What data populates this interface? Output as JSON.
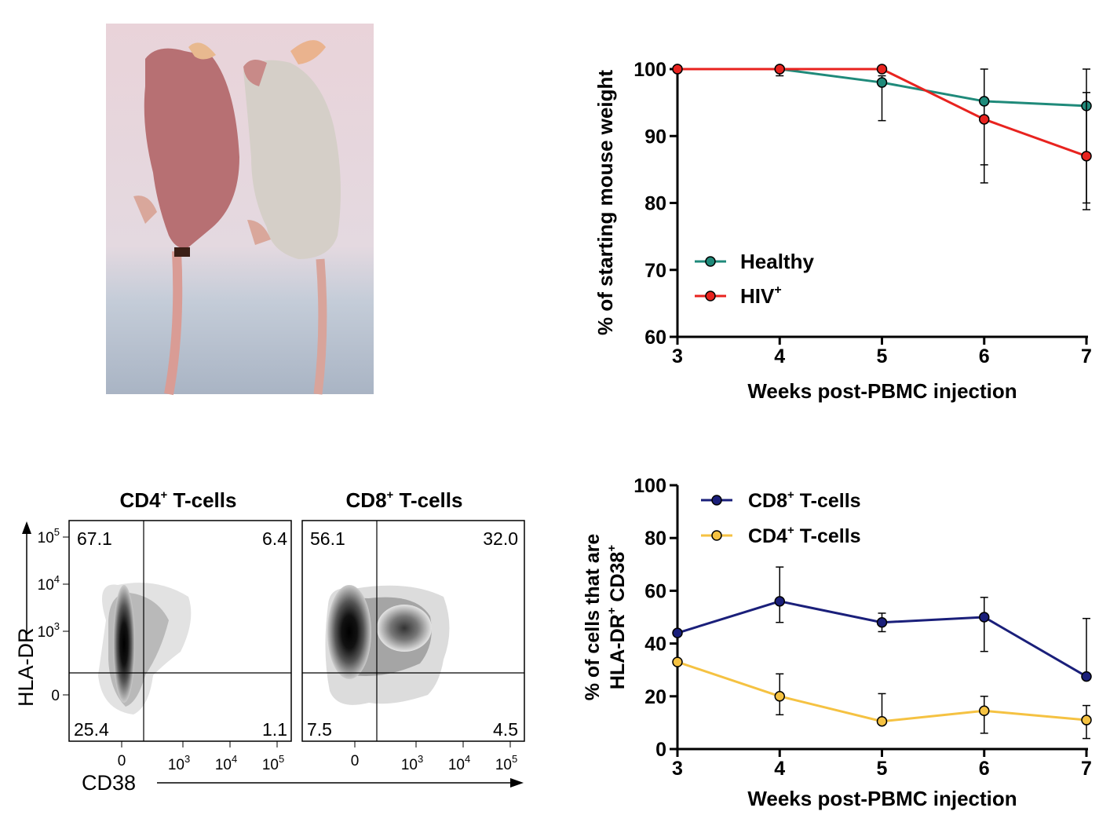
{
  "panels": {
    "photo": {
      "description_icon": "mouse-photo"
    },
    "weight_chart": {
      "chart_data": {
        "type": "line",
        "ylabel": "% of starting mouse weight",
        "xlabel": "Weeks post-PBMC injection",
        "x": [
          3,
          4,
          5,
          6,
          7
        ],
        "xticks": [
          "3",
          "4",
          "5",
          "6",
          "7"
        ],
        "yticks": [
          "60",
          "70",
          "80",
          "90",
          "100"
        ],
        "ylim": [
          60,
          100
        ],
        "legend_placement": "bottom-left",
        "series": [
          {
            "name": "Healthy",
            "superscript": "",
            "color": "#1f8a7a",
            "values": [
              100,
              100,
              98,
              95.2,
              94.5
            ],
            "err_up": [
              0,
              0,
              1,
              4.8,
              5.5
            ],
            "err_down": [
              0,
              1,
              5.7,
              9.5,
              14.5
            ]
          },
          {
            "name": "HIV",
            "superscript": "+",
            "color": "#e8231f",
            "values": [
              100,
              100,
              100,
              92.5,
              87
            ],
            "err_up": [
              0,
              0,
              0,
              0,
              9.5
            ],
            "err_down": [
              0,
              0,
              0,
              9.5,
              8
            ]
          }
        ]
      }
    },
    "flow": {
      "x_axis_label": "CD38",
      "y_axis_label": "HLA-DR",
      "y_ticks": [
        "10",
        "10",
        "10",
        "0"
      ],
      "y_tick_exps": [
        "5",
        "4",
        "3",
        ""
      ],
      "x_ticks": [
        "0",
        "10",
        "10",
        "10"
      ],
      "x_tick_exps": [
        "",
        "3",
        "4",
        "5"
      ],
      "plots": [
        {
          "title": "CD4",
          "title_sup": "+",
          "title_rest": " T-cells",
          "quadrants": {
            "tl": "67.1",
            "tr": "6.4",
            "bl": "25.4",
            "br": "1.1"
          }
        },
        {
          "title": "CD8",
          "title_sup": "+",
          "title_rest": " T-cells",
          "quadrants": {
            "tl": "56.1",
            "tr": "32.0",
            "bl": "7.5",
            "br": "4.5"
          }
        }
      ]
    },
    "activation_chart": {
      "chart_data": {
        "type": "line",
        "ylabel_line1": "% of cells that are",
        "ylabel_line2": "HLA-DR",
        "ylabel_line2_mid": " CD38",
        "xlabel": "Weeks post-PBMC injection",
        "x": [
          3,
          4,
          5,
          6,
          7
        ],
        "xticks": [
          "3",
          "4",
          "5",
          "6",
          "7"
        ],
        "yticks": [
          "0",
          "20",
          "40",
          "60",
          "80",
          "100"
        ],
        "ylim": [
          0,
          100
        ],
        "legend_placement": "top-left",
        "series": [
          {
            "name": "CD8",
            "name_sup": "+",
            "name_rest": " T-cells",
            "color": "#1a1f7a",
            "values": [
              44,
              56,
              48,
              50,
              27.5
            ],
            "err_up": [
              0,
              13,
              3.5,
              7.5,
              22
            ],
            "err_down": [
              0,
              8,
              3.5,
              13,
              0
            ]
          },
          {
            "name": "CD4",
            "name_sup": "+",
            "name_rest": " T-cells",
            "color": "#f5c242",
            "values": [
              33,
              20,
              10.5,
              14.5,
              11
            ],
            "err_up": [
              0,
              8.5,
              10.5,
              5.5,
              5.5
            ],
            "err_down": [
              0,
              7,
              0,
              8.5,
              7
            ]
          }
        ]
      }
    }
  }
}
